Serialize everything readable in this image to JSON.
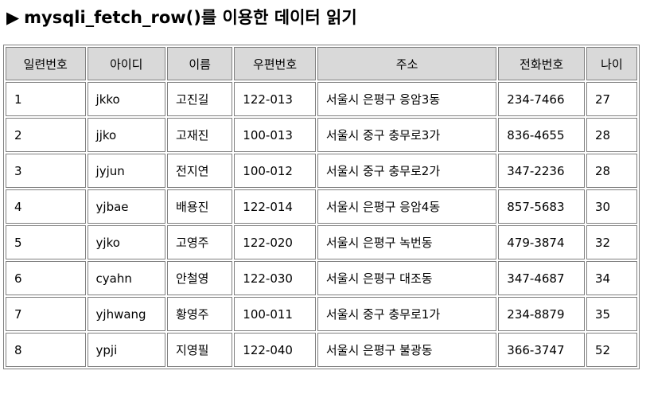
{
  "title": "mysqli_fetch_row()를 이용한 데이터 읽기",
  "title_arrow": "▶",
  "table": {
    "headers": [
      "일련번호",
      "아이디",
      "이름",
      "우편번호",
      "주소",
      "전화번호",
      "나이"
    ],
    "rows": [
      [
        "1",
        "jkko",
        "고진길",
        "122-013",
        "서울시 은평구 응암3동",
        "234-7466",
        "27"
      ],
      [
        "2",
        "jjko",
        "고재진",
        "100-013",
        "서울시 중구 충무로3가",
        "836-4655",
        "28"
      ],
      [
        "3",
        "jyjun",
        "전지연",
        "100-012",
        "서울시 중구 충무로2가",
        "347-2236",
        "28"
      ],
      [
        "4",
        "yjbae",
        "배용진",
        "122-014",
        "서울시 은평구 응암4동",
        "857-5683",
        "30"
      ],
      [
        "5",
        "yjko",
        "고영주",
        "122-020",
        "서울시 은평구 녹번동",
        "479-3874",
        "32"
      ],
      [
        "6",
        "cyahn",
        "안철영",
        "122-030",
        "서울시 은평구 대조동",
        "347-4687",
        "34"
      ],
      [
        "7",
        "yjhwang",
        "황영주",
        "100-011",
        "서울시 중구 충무로1가",
        "234-8879",
        "35"
      ],
      [
        "8",
        "ypji",
        "지영필",
        "122-040",
        "서울시 은평구 불광동",
        "366-3747",
        "52"
      ]
    ]
  }
}
